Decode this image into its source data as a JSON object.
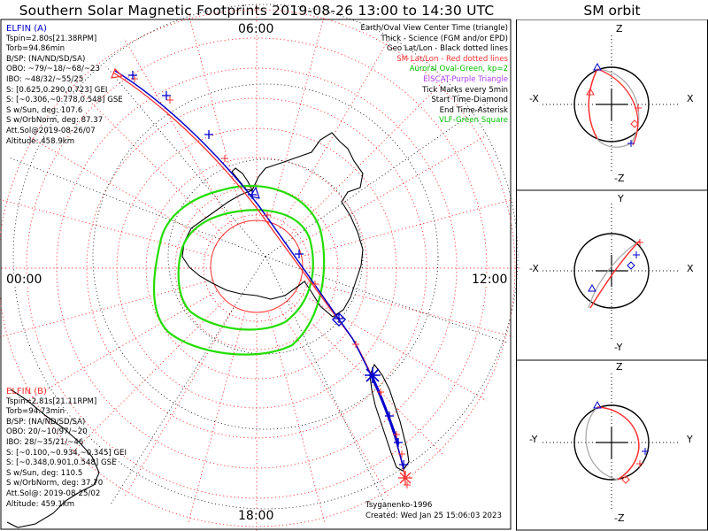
{
  "title": "Southern Solar Magnetic Footprints 2019-08-26 13:00 to 14:30 UTC",
  "orbit_title": "SM orbit",
  "colors": {
    "elfin_a": "#0000cc",
    "elfin_b": "#ff3030",
    "aurora": "#22dd00",
    "sm_grid": "#ff3030",
    "geo_grid": "#000000"
  },
  "hour_labels": {
    "top": "06:00",
    "left": "00:00",
    "right": "12:00",
    "bottom": "18:00"
  },
  "elfin_a": {
    "name": "ELFIN (A)",
    "lines": [
      "Tspin=2.80s[21.38RPM]",
      "Torb=94.86min",
      "B/SP: (NA/ND/SD/SA)",
      "OBO: ~79/~18/~68/~23",
      "IBO: ~48/32/~55/25",
      "S: [0.625,0.290,0.723] GEI",
      "S: [~0.306,~0.778,0.548] GSE",
      "S w/Sun, deg: 107.6",
      "S w/OrbNorm, deg: 87.37",
      "Att.Sol@2019-08-26/07",
      "Altitude: 458.9km"
    ]
  },
  "elfin_b": {
    "name": "ELFIN (B)",
    "lines": [
      "Tspin=2.81s[21.11RPM]",
      "Torb=94.73min",
      "B/SP: (NA/ND/SD/SA)",
      "OBO: 20/~10/97/~20",
      "IBO: 28/~35/21/~46",
      "S: [~0.100,~0.934,~0.345] GEI",
      "S: [~0.348,0.901,0.548] GSE",
      "S w/Sun, deg: 110.5",
      "S w/OrbNorm, deg: 37.70",
      "Att.Sol@: 2019-08-25/02",
      "Altitude: 459.1km"
    ]
  },
  "legend": [
    {
      "text": "Earth/Oval View Center Time (triangle)",
      "color": "#000000"
    },
    {
      "text": "Thick - Science (FGM and/or EPD)",
      "color": "#000000"
    },
    {
      "text": "Geo Lat/Lon - Black dotted lines",
      "color": "#000000"
    },
    {
      "text": "SM Lat/Lon - Red dotted lines",
      "color": "#ff3030"
    },
    {
      "text": "Auroral Oval-Green, kp=2",
      "color": "#00c000"
    },
    {
      "text": "EISCAT-Purple Triangle",
      "color": "#b040ff"
    },
    {
      "text": "Tick Marks every 5min",
      "color": "#000000"
    },
    {
      "text": "Start Time-Diamond",
      "color": "#000000"
    },
    {
      "text": "End Time-Asterisk",
      "color": "#000000"
    },
    {
      "text": "VLF-Green Square",
      "color": "#00c000"
    }
  ],
  "credit": "Tsyganenko-1996",
  "created": "Created: Wed Jan 25 15:06:03 2023",
  "orbit_panels": [
    {
      "name": "xz",
      "top": "Z",
      "bottom": "-Z",
      "left": "-X",
      "right": "X"
    },
    {
      "name": "xy",
      "top": "Y",
      "bottom": "-Y",
      "left": "-X",
      "right": "X"
    },
    {
      "name": "yz",
      "top": "Z",
      "bottom": "-Z",
      "left": "-Y",
      "right": "Y"
    }
  ]
}
